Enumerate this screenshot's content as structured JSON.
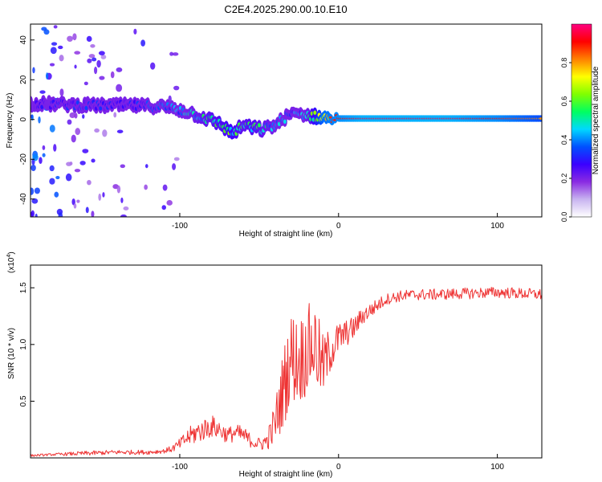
{
  "chart_title": "C2E4.2025.290.00.10.E10",
  "chart_data": [
    {
      "type": "heatmap",
      "xlabel": "Height of straight line (km)",
      "ylabel": "Frequency (Hz)",
      "xlim": [
        -194,
        128
      ],
      "ylim": [
        -49,
        48
      ],
      "xticks": [
        -100,
        0,
        100
      ],
      "xtick_labels": [
        "-100",
        "0",
        "100"
      ],
      "yticks": [
        -40,
        -20,
        0,
        20,
        40
      ],
      "ytick_labels": [
        "-40",
        "-20",
        "0",
        "20",
        "40"
      ],
      "colorbar": {
        "label": "Normalized spectral amplitude",
        "range": [
          0,
          1
        ],
        "ticks": [
          0.0,
          0.2,
          0.4,
          0.6,
          0.8
        ],
        "tick_labels": [
          "0.0",
          "0.2",
          "0.4",
          "0.6",
          "0.8"
        ],
        "colors": [
          "#ffffff",
          "#c8b4f0",
          "#8a2be2",
          "#3a00ff",
          "#0050ff",
          "#00d8ff",
          "#00ff60",
          "#80ff00",
          "#ffff00",
          "#ff8000",
          "#ff0000",
          "#ff0080"
        ]
      },
      "ridge": {
        "x": [
          -190,
          -170,
          -150,
          -130,
          -110,
          -95,
          -85,
          -75,
          -67,
          -60,
          -55,
          -48,
          -40,
          -32,
          -25,
          -18,
          -10,
          0,
          15,
          40,
          70,
          100,
          128
        ],
        "freq": [
          8,
          7.5,
          7,
          7,
          6.5,
          4,
          1,
          -2,
          -7,
          -3,
          -4,
          -5,
          -3,
          2,
          3,
          2,
          1,
          0.5,
          0.5,
          0.5,
          0.5,
          0.5,
          0.5
        ],
        "amplitude": [
          0.25,
          0.3,
          0.3,
          0.3,
          0.35,
          0.45,
          0.5,
          0.55,
          0.6,
          0.5,
          0.55,
          0.5,
          0.45,
          0.4,
          0.4,
          0.5,
          0.85,
          0.9,
          0.95,
          0.95,
          0.95,
          0.9,
          0.8
        ]
      }
    },
    {
      "type": "line",
      "xlabel": "Height of straight line (km)",
      "ylabel": "SNR (10 * v/v)",
      "y_multiplier_label": "(x10",
      "y_multiplier_exponent": "4",
      "y_multiplier_close": ")",
      "xlim": [
        -194,
        128
      ],
      "ylim": [
        0,
        1.7
      ],
      "xticks": [
        -100,
        0,
        100
      ],
      "xtick_labels": [
        "-100",
        "0",
        "100"
      ],
      "yticks": [
        0.5,
        1.0,
        1.5
      ],
      "ytick_labels": [
        "0.5",
        "1.0",
        "1.5"
      ],
      "color": "#ee3333",
      "series": [
        {
          "name": "SNR",
          "x": [
            -194,
            -180,
            -160,
            -140,
            -120,
            -110,
            -105,
            -100,
            -95,
            -90,
            -85,
            -80,
            -75,
            -70,
            -65,
            -60,
            -55,
            -50,
            -45,
            -40,
            -35,
            -30,
            -25,
            -20,
            -15,
            -10,
            -5,
            0,
            5,
            10,
            15,
            20,
            25,
            30,
            40,
            50,
            60,
            80,
            100,
            128
          ],
          "values": [
            0.02,
            0.03,
            0.04,
            0.05,
            0.05,
            0.06,
            0.08,
            0.12,
            0.18,
            0.22,
            0.25,
            0.28,
            0.25,
            0.2,
            0.22,
            0.2,
            0.15,
            0.12,
            0.15,
            0.3,
            0.6,
            0.9,
            0.85,
            0.95,
            1.0,
            0.8,
            0.95,
            1.05,
            1.1,
            1.15,
            1.25,
            1.3,
            1.35,
            1.4,
            1.43,
            1.44,
            1.44,
            1.45,
            1.46,
            1.44
          ],
          "noise": [
            0.01,
            0.01,
            0.02,
            0.02,
            0.02,
            0.02,
            0.03,
            0.05,
            0.08,
            0.1,
            0.1,
            0.1,
            0.09,
            0.07,
            0.08,
            0.08,
            0.06,
            0.06,
            0.08,
            0.2,
            0.35,
            0.4,
            0.4,
            0.4,
            0.4,
            0.3,
            0.2,
            0.15,
            0.12,
            0.1,
            0.08,
            0.07,
            0.06,
            0.05,
            0.05,
            0.05,
            0.05,
            0.05,
            0.05,
            0.05
          ]
        }
      ]
    }
  ]
}
